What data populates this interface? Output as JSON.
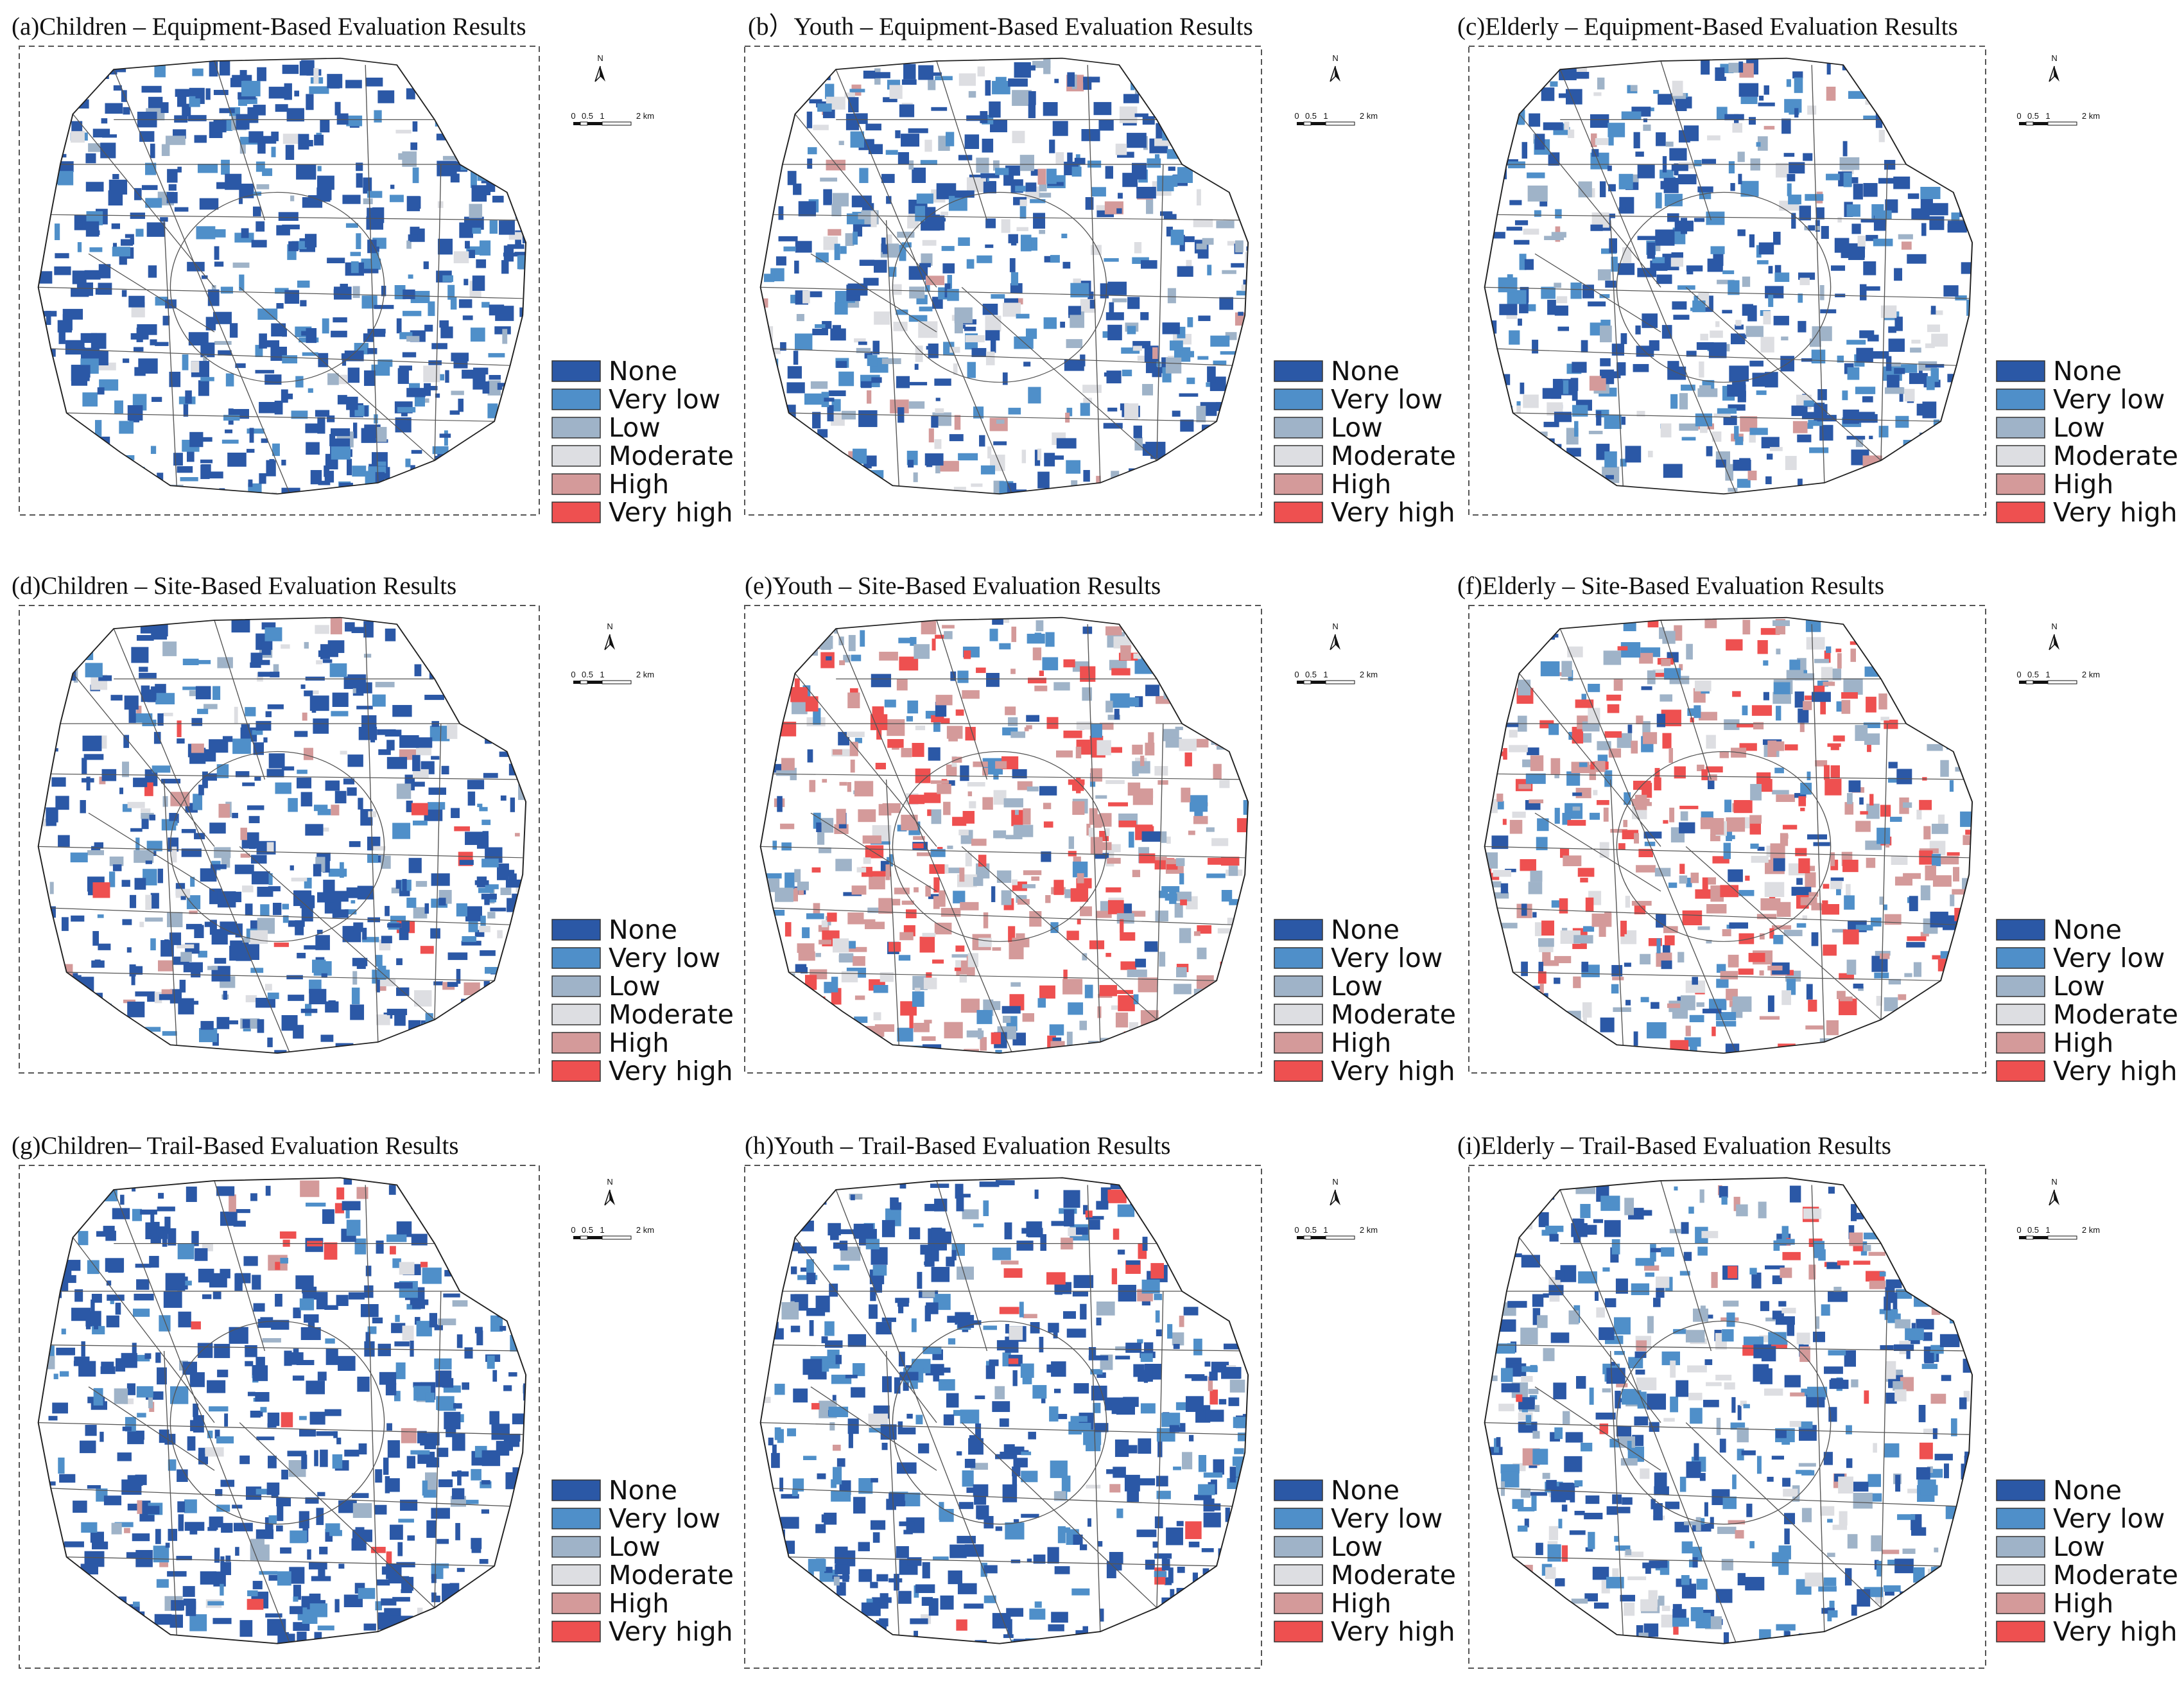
{
  "figure": {
    "legend": {
      "categories": [
        {
          "label": "None",
          "color": "#2b58a6"
        },
        {
          "label": "Very low",
          "color": "#4f8fc9"
        },
        {
          "label": "Low",
          "color": "#9fb3c8"
        },
        {
          "label": "Moderate",
          "color": "#dddee2"
        },
        {
          "label": "High",
          "color": "#d49a9a"
        },
        {
          "label": "Very high",
          "color": "#ee5050"
        }
      ]
    },
    "scale_bar": {
      "ticks": [
        "0",
        "0.5",
        "1",
        "2 km"
      ]
    },
    "north_arrow": {
      "label": "N",
      "icon": "north-arrow-icon"
    },
    "panels": [
      {
        "title": "(a)Children – Equipment-Based Evaluation Results",
        "pattern": "equip_children",
        "weights": [
          0.7,
          0.22,
          0.05,
          0.03,
          0.0,
          0.0
        ]
      },
      {
        "title": "(b）Youth – Equipment-Based Evaluation Results",
        "pattern": "equip_youth",
        "weights": [
          0.5,
          0.22,
          0.12,
          0.12,
          0.04,
          0.0
        ]
      },
      {
        "title": "(c)Elderly – Equipment-Based Evaluation Results",
        "pattern": "equip_elderly",
        "weights": [
          0.55,
          0.23,
          0.1,
          0.1,
          0.02,
          0.0
        ]
      },
      {
        "title": "(d)Children – Site-Based Evaluation Results",
        "pattern": "site_children",
        "weights": [
          0.62,
          0.18,
          0.07,
          0.05,
          0.05,
          0.03
        ]
      },
      {
        "title": "(e)Youth – Site-Based Evaluation Results",
        "pattern": "site_youth",
        "weights": [
          0.1,
          0.14,
          0.16,
          0.14,
          0.26,
          0.2
        ]
      },
      {
        "title": "(f)Elderly – Site-Based Evaluation Results",
        "pattern": "site_elderly",
        "weights": [
          0.12,
          0.16,
          0.16,
          0.12,
          0.24,
          0.2
        ]
      },
      {
        "title": "(g)Children– Trail-Based Evaluation Results",
        "pattern": "trail_children",
        "weights": [
          0.72,
          0.2,
          0.04,
          0.02,
          0.01,
          0.01
        ]
      },
      {
        "title": "(h)Youth – Trail-Based Evaluation Results",
        "pattern": "trail_youth",
        "weights": [
          0.72,
          0.21,
          0.03,
          0.02,
          0.01,
          0.01
        ]
      },
      {
        "title": "(i)Elderly – Trail-Based Evaluation Results",
        "pattern": "trail_elderly",
        "weights": [
          0.4,
          0.3,
          0.12,
          0.12,
          0.04,
          0.02
        ]
      }
    ]
  }
}
